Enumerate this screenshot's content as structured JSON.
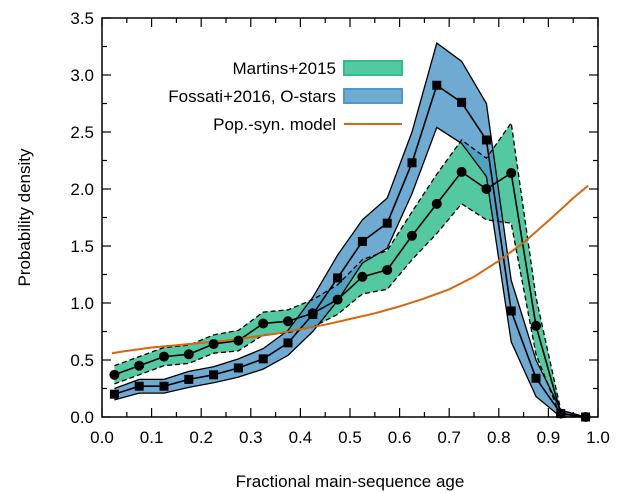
{
  "chart_data": {
    "type": "line",
    "title": "",
    "xlabel": "Fractional main-sequence age",
    "ylabel": "Probability density",
    "xlim": [
      0.0,
      1.0
    ],
    "ylim": [
      0.0,
      3.5
    ],
    "x_ticks": [
      "0.0",
      "0.1",
      "0.2",
      "0.3",
      "0.4",
      "0.5",
      "0.6",
      "0.7",
      "0.8",
      "0.9",
      "1.0"
    ],
    "y_ticks": [
      "0.0",
      "0.5",
      "1.0",
      "1.5",
      "2.0",
      "2.5",
      "3.0",
      "3.5"
    ],
    "grid": false,
    "legend_position": "top-right",
    "series": [
      {
        "name": "Martins+2015",
        "kind": "band",
        "color": "#2ebd8c",
        "edge_color": "#000000",
        "marker": "circle",
        "x": [
          0.025,
          0.075,
          0.125,
          0.175,
          0.225,
          0.275,
          0.325,
          0.375,
          0.425,
          0.475,
          0.525,
          0.575,
          0.625,
          0.675,
          0.725,
          0.775,
          0.825,
          0.875,
          0.925,
          0.975
        ],
        "values": [
          0.37,
          0.45,
          0.53,
          0.55,
          0.64,
          0.67,
          0.82,
          0.84,
          0.91,
          1.03,
          1.23,
          1.29,
          1.59,
          1.87,
          2.15,
          2.0,
          2.14,
          0.8,
          0.03,
          0.0
        ],
        "upper": [
          0.45,
          0.53,
          0.61,
          0.63,
          0.72,
          0.76,
          0.92,
          0.94,
          1.03,
          1.16,
          1.38,
          1.46,
          1.8,
          2.13,
          2.43,
          2.27,
          2.58,
          1.05,
          0.06,
          0.0
        ],
        "lower": [
          0.29,
          0.37,
          0.45,
          0.47,
          0.56,
          0.58,
          0.72,
          0.74,
          0.79,
          0.9,
          1.08,
          1.12,
          1.38,
          1.61,
          1.87,
          1.73,
          1.7,
          0.55,
          0.0,
          0.0
        ]
      },
      {
        "name": "Fossati+2016, O-stars",
        "kind": "band",
        "color": "#4f97c9",
        "edge_color": "#000000",
        "marker": "square",
        "x": [
          0.025,
          0.075,
          0.125,
          0.175,
          0.225,
          0.275,
          0.325,
          0.375,
          0.425,
          0.475,
          0.525,
          0.575,
          0.625,
          0.675,
          0.725,
          0.775,
          0.825,
          0.875,
          0.925,
          0.975
        ],
        "values": [
          0.2,
          0.27,
          0.27,
          0.33,
          0.37,
          0.43,
          0.51,
          0.65,
          0.9,
          1.22,
          1.54,
          1.7,
          2.23,
          2.91,
          2.76,
          2.43,
          0.93,
          0.34,
          0.03,
          0.0
        ],
        "upper": [
          0.25,
          0.33,
          0.33,
          0.4,
          0.44,
          0.51,
          0.6,
          0.76,
          1.05,
          1.42,
          1.73,
          1.92,
          2.5,
          3.28,
          3.12,
          2.75,
          1.2,
          0.5,
          0.06,
          0.0
        ],
        "lower": [
          0.15,
          0.21,
          0.21,
          0.26,
          0.3,
          0.35,
          0.42,
          0.54,
          0.75,
          1.02,
          1.35,
          1.48,
          1.96,
          2.54,
          2.4,
          2.11,
          0.66,
          0.18,
          0.0,
          0.0
        ]
      },
      {
        "name": "Pop.-syn. model",
        "kind": "line",
        "color": "#d4670f",
        "x": [
          0.02,
          0.05,
          0.1,
          0.15,
          0.2,
          0.25,
          0.3,
          0.35,
          0.4,
          0.45,
          0.5,
          0.55,
          0.6,
          0.65,
          0.7,
          0.75,
          0.8,
          0.85,
          0.9,
          0.95,
          0.98
        ],
        "values": [
          0.56,
          0.58,
          0.61,
          0.63,
          0.65,
          0.67,
          0.7,
          0.73,
          0.77,
          0.81,
          0.86,
          0.91,
          0.97,
          1.04,
          1.12,
          1.23,
          1.37,
          1.53,
          1.72,
          1.92,
          2.03
        ]
      }
    ]
  }
}
